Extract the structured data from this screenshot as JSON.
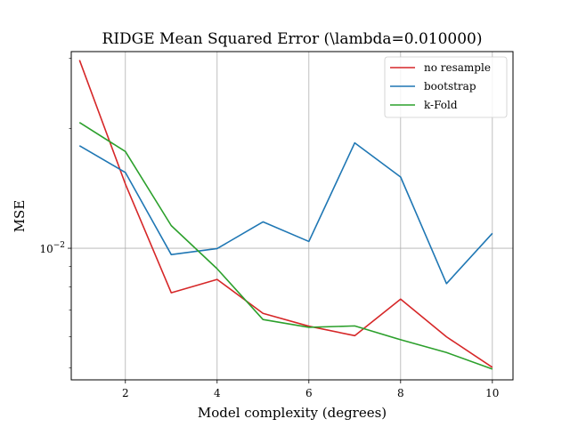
{
  "chart_data": {
    "type": "line",
    "title": "RIDGE Mean Squared Error (\\lambda=0.010000)",
    "xlabel": "Model complexity (degrees)",
    "ylabel": "MSE",
    "yscale": "log",
    "xlim": [
      0.82,
      10.45
    ],
    "ylim": [
      0.00467,
      0.0312
    ],
    "xticks": [
      2,
      4,
      6,
      8,
      10
    ],
    "xtick_labels": [
      "2",
      "4",
      "6",
      "8",
      "10"
    ],
    "yticks": [
      0.01
    ],
    "ytick_labels": [
      "10−2"
    ],
    "grid": true,
    "legend_position": "top-right",
    "x": [
      1,
      2,
      3,
      4,
      5,
      6,
      7,
      8,
      9,
      10
    ],
    "series": [
      {
        "name": "no resample",
        "color": "#d62728",
        "values": [
          0.0297,
          0.0145,
          0.00773,
          0.00835,
          0.00686,
          0.00637,
          0.00603,
          0.00745,
          0.00599,
          0.00502
        ]
      },
      {
        "name": "bootstrap",
        "color": "#1f77b4",
        "values": [
          0.0181,
          0.0155,
          0.00964,
          0.00998,
          0.01165,
          0.0104,
          0.0184,
          0.0151,
          0.00815,
          0.0109
        ]
      },
      {
        "name": "k-Fold",
        "color": "#2ca02c",
        "values": [
          0.0207,
          0.0175,
          0.0114,
          0.00888,
          0.00662,
          0.00633,
          0.00638,
          0.00589,
          0.00547,
          0.00497
        ]
      }
    ]
  }
}
